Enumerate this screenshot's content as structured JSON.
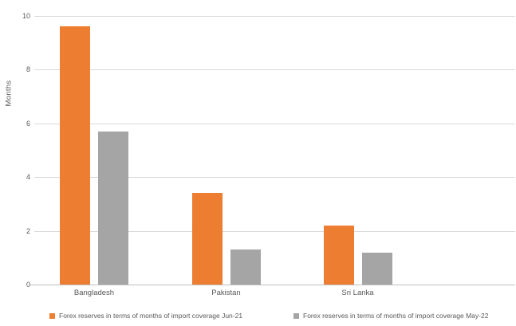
{
  "chart_data": {
    "type": "bar",
    "title": "",
    "ylabel": "Months",
    "xlabel": "",
    "categories": [
      "Bangladesh",
      "Pakistan",
      "Sri Lanka"
    ],
    "series": [
      {
        "name": "Forex reserves in terms of months of import coverage Jun-21",
        "values": [
          9.6,
          3.4,
          2.2
        ],
        "color": "#ED7D31"
      },
      {
        "name": "Forex reserves in terms of months of import coverage May-22",
        "values": [
          5.7,
          1.3,
          1.2
        ],
        "color": "#A5A5A5"
      }
    ],
    "ylim": [
      0,
      10
    ],
    "yticks": [
      0,
      2,
      4,
      6,
      8,
      10
    ],
    "grid": true,
    "legend_position": "bottom"
  },
  "colors": {
    "gridline": "#D9D9D9",
    "axis_line": "#BFBFBF",
    "text": "#595959",
    "background": "#FFFFFF"
  }
}
